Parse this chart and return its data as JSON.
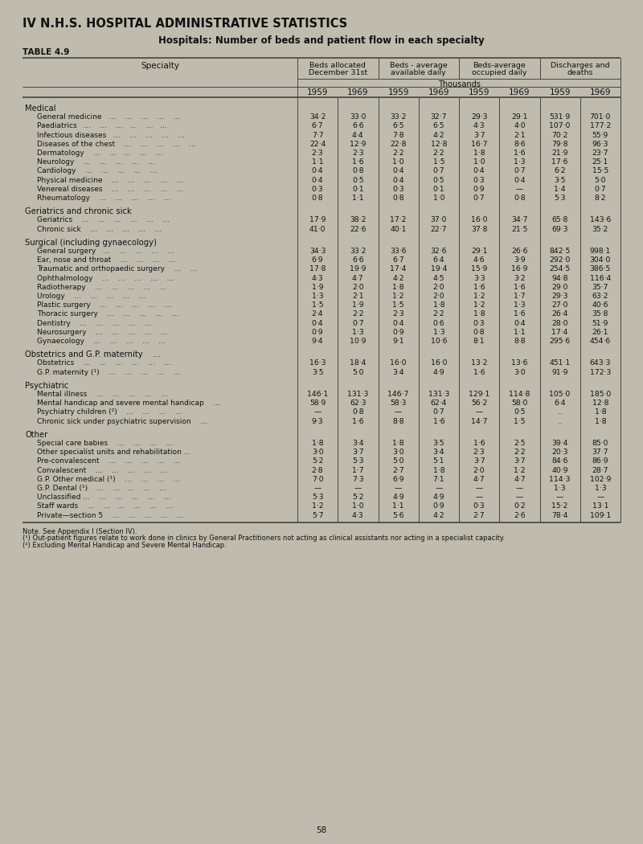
{
  "title_section": "IV N.H.S. HOSPITAL ADMINISTRATIVE STATISTICS",
  "subtitle": "Hospitals: Number of beds and patient flow in each specialty",
  "table_label": "TABLE 4.9",
  "col_headers": [
    "Beds allocated\nDecember 31st",
    "Beds - average\navailable daily",
    "Beds-average\noccupied daily",
    "Discharges and\ndeaths"
  ],
  "years": [
    "1959",
    "1969",
    "1959",
    "1969",
    "1959",
    "1969",
    "1959",
    "1969"
  ],
  "thousands_label": "Thousands",
  "background_color": "#bfbcae",
  "text_color": "#1a1a1a",
  "page_number": "58",
  "sections": [
    {
      "section_header": "Medical",
      "rows": [
        {
          "label": "General medicine   ...    ...    ...    ...    ...",
          "values": [
            "34·2",
            "33·0",
            "33·2",
            "32·7",
            "29·3",
            "29·1",
            "531·9",
            "701·0"
          ]
        },
        {
          "label": "Paediatrics   ...    ...    ...   ...    ...   ...",
          "values": [
            "6·7",
            "6·6",
            "6·5",
            "6·5",
            "4·3",
            "4·0",
            "107·0",
            "177·2"
          ]
        },
        {
          "label": "Infectious diseases   ...    ...    ...    ...    ...",
          "values": [
            "7·7",
            "4·4",
            "7·8",
            "4·2",
            "3·7",
            "2·1",
            "70·2",
            "55·9"
          ]
        },
        {
          "label": "Diseases of the chest    ...    ...    ...    ...    ...",
          "values": [
            "22·4",
            "12·9",
            "22·8",
            "12·8",
            "16·7",
            "8·6",
            "79·8",
            "96·3"
          ]
        },
        {
          "label": "Dermatology    ...    ...   ...    ...    ...",
          "values": [
            "2·3",
            "2·3",
            "2·2",
            "2·2",
            "1·8",
            "1·6",
            "21·9",
            "23·7"
          ]
        },
        {
          "label": "Neurology    ...    ...    ...    ...    ...",
          "values": [
            "1·1",
            "1·6",
            "1·0",
            "1·5",
            "1·0",
            "1·3",
            "17·6",
            "25·1"
          ]
        },
        {
          "label": "Cardiology    ...    ...    ...    ...    ...",
          "values": [
            "0·4",
            "0·8",
            "0·4",
            "0·7",
            "0·4",
            "0·7",
            "6·2",
            "15·5"
          ]
        },
        {
          "label": "Physical medicine    ...    ...    ...    ...    ...",
          "values": [
            "0·4",
            "0·5",
            "0·4",
            "0·5",
            "0·3",
            "0·4",
            "3·5",
            "5·0"
          ]
        },
        {
          "label": "Venereal diseases    ...    ...    ...    ...    ...",
          "values": [
            "0·3",
            "0·1",
            "0·3",
            "0·1",
            "0·9",
            "—",
            "1·4",
            "0·7"
          ]
        },
        {
          "label": "Rheumatology    ...    ...    ...    ...    ...",
          "values": [
            "0·8",
            "1·1",
            "0·8",
            "1·0",
            "0·7",
            "0·8",
            "5·3",
            "8·2"
          ]
        }
      ]
    },
    {
      "section_header": "Geriatrics and chronic sick",
      "rows": [
        {
          "label": "Geriatrics    ...    ...    ...    ...    ...    ...",
          "values": [
            "17·9",
            "38·2",
            "17·2",
            "37·0",
            "16·0",
            "34·7",
            "65·8",
            "143·6"
          ]
        },
        {
          "label": "Chronic sick    ...    ...    ...    ...    ...",
          "values": [
            "41·0",
            "22·6",
            "40·1",
            "22·7",
            "37·8",
            "21·5",
            "69·3",
            "35·2"
          ]
        }
      ]
    },
    {
      "section_header": "Surgical (including gynaecology)",
      "rows": [
        {
          "label": "General surgery   ...    ...    ...    ...    ...",
          "values": [
            "34·3",
            "33·2",
            "33·6",
            "32·6",
            "29·1",
            "26·6",
            "842·5",
            "998·1"
          ]
        },
        {
          "label": "Ear, nose and throat    ...    ...    ...    ...",
          "values": [
            "6·9",
            "6·6",
            "6·7",
            "6·4",
            "4·6",
            "3·9",
            "292·0",
            "304·0"
          ]
        },
        {
          "label": "Traumatic and orthopaedic surgery    ...    ...",
          "values": [
            "17·8",
            "19·9",
            "17·4",
            "19·4",
            "15·9",
            "16·9",
            "254·5",
            "386·5"
          ]
        },
        {
          "label": "Ophthalmology    ...    ...    ...    ...    ...",
          "values": [
            "4·3",
            "4·7",
            "4·2",
            "4·5",
            "3·3",
            "3·2",
            "94·8",
            "116·4"
          ]
        },
        {
          "label": "Radiotherapy    ...    ...    ...    ...    ...",
          "values": [
            "1·9",
            "2·0",
            "1·8",
            "2·0",
            "1·6",
            "1·6",
            "29·0",
            "35·7"
          ]
        },
        {
          "label": "Urology    ...    ...    ...    ...    ...",
          "values": [
            "1·3",
            "2·1",
            "1·2",
            "2·0",
            "1·2",
            "1·7",
            "29·3",
            "63·2"
          ]
        },
        {
          "label": "Plastic surgery    ...    ...    ...    ...    ...",
          "values": [
            "1·5",
            "1·9",
            "1·5",
            "1·8",
            "1·2",
            "1·3",
            "27·0",
            "40·6"
          ]
        },
        {
          "label": "Thoracic surgery    ...    ...    ...    ...    ...",
          "values": [
            "2·4",
            "2·2",
            "2·3",
            "2·2",
            "1·8",
            "1·6",
            "26·4",
            "35·8"
          ]
        },
        {
          "label": "Dentistry    ...    ...    ...    ...    ...",
          "values": [
            "0·4",
            "0·7",
            "0·4",
            "0·6",
            "0·3",
            "0·4",
            "28·0",
            "51·9"
          ]
        },
        {
          "label": "Neurosurgery    ...    ...    ...    ...    ...",
          "values": [
            "0·9",
            "1·3",
            "0·9",
            "1·3",
            "0·8",
            "1·1",
            "17·4",
            "26·1"
          ]
        },
        {
          "label": "Gynaecology    ...    ...    ...    ...    ...",
          "values": [
            "9·4",
            "10·9",
            "9·1",
            "10·6",
            "8·1",
            "8·8",
            "295·6",
            "454·6"
          ]
        }
      ]
    },
    {
      "section_header": "Obstetrics and G.P. maternity    ...",
      "rows": [
        {
          "label": "Obstetrics    ...    ...    ...    ...    ...    ...",
          "values": [
            "16·3",
            "18·4",
            "16·0",
            "16·0",
            "13·2",
            "13·6",
            "451·1",
            "643·3"
          ]
        },
        {
          "label": "G.P. maternity (¹)    ...    ...    ...    ...    ...",
          "values": [
            "3·5",
            "5·0",
            "3·4",
            "4·9",
            "1·6",
            "3·0",
            "91·9",
            "172·3"
          ]
        }
      ]
    },
    {
      "section_header": "Psychiatric",
      "rows": [
        {
          "label": "Mental illness    ...    ...    ...    ...    ...",
          "values": [
            "146·1",
            "131·3",
            "146·7",
            "131·3",
            "129·1",
            "114·8",
            "105·0",
            "185·0"
          ]
        },
        {
          "label": "Mental handicap and severe mental handicap    ...",
          "values": [
            "58·9",
            "62·3",
            "58·3",
            "62·4",
            "56·2",
            "58·0",
            "6·4",
            "12·8"
          ]
        },
        {
          "label": "Psychiatry children (²)    ...    ...    ...    ...",
          "values": [
            "—",
            "0·8",
            "—",
            "0·7",
            "—",
            "0·5",
            "..",
            "1·8"
          ]
        },
        {
          "label": "Chronic sick under psychiatric supervision    ...",
          "values": [
            "9·3",
            "1·6",
            "8·8",
            "1·6",
            "14·7",
            "1·5",
            "..",
            "1·8"
          ]
        }
      ]
    },
    {
      "section_header": "Other",
      "rows": [
        {
          "label": "Special care babies    ...    ...    ...    ...",
          "values": [
            "1·8",
            "3·4",
            "1·8",
            "3·5",
            "1·6",
            "2·5",
            "39·4",
            "85·0"
          ]
        },
        {
          "label": "Other specialist units and rehabilitation ...",
          "values": [
            "3·0",
            "3·7",
            "3·0",
            "3·4",
            "2·3",
            "2·2",
            "20·3",
            "37·7"
          ]
        },
        {
          "label": "Pre-convalescent    ...    ...    ...    ...    ...",
          "values": [
            "5·2",
            "5·3",
            "5·0",
            "5·1",
            "3·7",
            "3·7",
            "84·6",
            "86·9"
          ]
        },
        {
          "label": "Convalescent    ...    ...    ...    ...    ...",
          "values": [
            "2·8",
            "1·7",
            "2·7",
            "1·8",
            "2·0",
            "1·2",
            "40·9",
            "28·7"
          ]
        },
        {
          "label": "G.P. Other medical (¹)    ...    ...    ...    ...",
          "values": [
            "7·0",
            "7·3",
            "6·9",
            "7·1",
            "4·7",
            "4·7",
            "114·3",
            "102·9"
          ]
        },
        {
          "label": "G.P. Dental (¹)    ...    ...   ...    ...    ...",
          "values": [
            "—",
            "—",
            "—",
            "—",
            "—",
            "—",
            "1·3",
            "1·3"
          ]
        },
        {
          "label": "Unclassified ...    ...    ...    ...    ...    ...",
          "values": [
            "5·3",
            "5·2",
            "4·9",
            "4·9",
            "—",
            "—",
            "—",
            "—"
          ]
        },
        {
          "label": "Staff wards    ...    ...   ...    ...    ...    ...",
          "values": [
            "1·2",
            "1·0",
            "1·1",
            "0·9",
            "0·3",
            "0·2",
            "15·2",
            "13·1"
          ]
        },
        {
          "label": "Private—section 5    ...    ...    ...    ...    ...",
          "values": [
            "5·7",
            "4·3",
            "5·6",
            "4·2",
            "2·7",
            "2·6",
            "78·4",
            "109·1"
          ]
        }
      ]
    }
  ],
  "notes": [
    "Note. See Appendix I (Section IV).",
    "(¹) Out-patient figures relate to work done in clinics by General Practitioners not acting as clinical assistants nor acting in a specialist capacity.",
    "(²) Excluding Mental Handicap and Severe Mental Handicap."
  ]
}
